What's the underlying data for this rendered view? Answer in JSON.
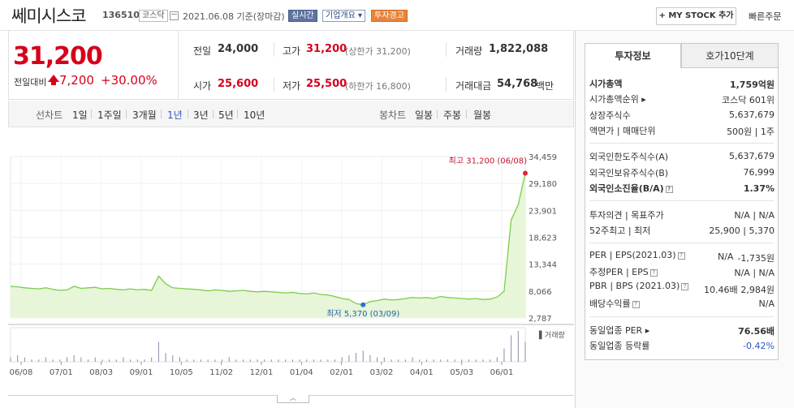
{
  "header": {
    "stock_name": "쎄미시스코",
    "stock_code": "136510",
    "market_badge": "코스닥",
    "date": "2021.06.08 기준(장마감)",
    "realtime_badge": "실시간",
    "company_badge": "기업개요 ▾",
    "warning_badge": "투자경고",
    "mystock_label": "+ MY STOCK 추가",
    "quick_order_label": "빠른주문"
  },
  "price": {
    "current": "31,200",
    "change_label": "전일대비",
    "change_amount": "7,200",
    "change_percent": "+30.00%"
  },
  "stats": {
    "prev_close_label": "전일",
    "prev_close": "24,000",
    "high_label": "고가",
    "high": "31,200",
    "upper_limit": "(상한가 31,200)",
    "volume_label": "거래량",
    "volume": "1,822,088",
    "open_label": "시가",
    "open": "25,600",
    "low_label": "저가",
    "low": "25,500",
    "lower_limit": "(하한가 16,800)",
    "amount_label": "거래대금",
    "amount": "54,768",
    "amount_unit": "백만"
  },
  "period_bar": {
    "line_chart_label": "선차트",
    "periods": [
      "1일",
      "1주일",
      "3개월",
      "1년",
      "3년",
      "5년",
      "10년"
    ],
    "selected_period": "1년",
    "candle_label": "봉차트",
    "candles": [
      "일봉",
      "주봉",
      "월봉"
    ]
  },
  "chart_data": {
    "type": "line",
    "y_ticks": [
      "34,459",
      "29,180",
      "23,901",
      "18,623",
      "13,344",
      "8,066",
      "2,787"
    ],
    "ylim": [
      2787,
      34459
    ],
    "x_ticks": [
      "06/08",
      "07/01",
      "08/03",
      "09/01",
      "10/05",
      "11/02",
      "12/01",
      "01/04",
      "02/01",
      "03/02",
      "04/01",
      "05/03",
      "06/01"
    ],
    "max_annotation": "최고 31,200 (06/08)",
    "min_annotation": "최저 5,370 (03/09)",
    "max_value": 31200,
    "min_value": 5370,
    "volume_label": "거래량",
    "series": [
      {
        "values": [
          9000,
          8900,
          8700,
          8600,
          8500,
          8700,
          8400,
          8200,
          8300,
          9000,
          8600,
          8700,
          8800,
          8500,
          8600,
          8400,
          8300,
          8500,
          8300,
          8400,
          8200,
          11000,
          9500,
          8700,
          8600,
          8500,
          8400,
          8300,
          8100,
          8300,
          8200,
          8000,
          8100,
          8200,
          8000,
          7900,
          8000,
          7900,
          7800,
          7700,
          7800,
          7600,
          7500,
          7700,
          7400,
          7300,
          7000,
          6600,
          6400,
          5600,
          5370,
          6000,
          6200,
          6500,
          6300,
          6400,
          6600,
          6800,
          6700,
          6800,
          6600,
          7000,
          6800,
          6700,
          6600,
          6500,
          6600,
          6400,
          6500,
          6900,
          8000,
          22000,
          25000,
          31200
        ]
      }
    ],
    "volume_values": [
      2,
      3,
      2,
      1,
      1,
      2,
      1,
      1,
      2,
      3,
      2,
      1,
      2,
      1,
      1,
      1,
      2,
      1,
      1,
      1,
      2,
      9,
      4,
      3,
      2,
      1,
      1,
      1,
      1,
      1,
      1,
      2,
      1,
      1,
      1,
      1,
      1,
      1,
      1,
      1,
      1,
      1,
      1,
      1,
      1,
      1,
      1,
      2,
      3,
      4,
      5,
      3,
      2,
      2,
      1,
      1,
      1,
      2,
      1,
      1,
      1,
      1,
      1,
      1,
      1,
      1,
      1,
      1,
      1,
      2,
      6,
      12,
      14,
      9
    ]
  },
  "right_panel": {
    "tab_invest": "투자정보",
    "tab_hoga": "호가10단계",
    "rows1": [
      {
        "label": "시가총액",
        "value": "1,759억원",
        "bold": true
      },
      {
        "label": "시가총액순위 ▸",
        "value": "코스닥 601위",
        "bold": false
      },
      {
        "label": "상장주식수",
        "value": "5,637,679",
        "bold": false
      },
      {
        "label": "액면가 | 매매단위",
        "value": "500원 | 1주",
        "bold": false
      }
    ],
    "rows2": [
      {
        "label": "외국인한도주식수(A)",
        "value": "5,637,679",
        "bold": false
      },
      {
        "label": "외국인보유주식수(B)",
        "value": "76,999",
        "bold": false
      },
      {
        "label": "외국인소진율(B/A)",
        "value": "1.37%",
        "bold": true
      }
    ],
    "invest_opinion_label": "투자의견 | 목표주가",
    "invest_opinion_value": "N/A | N/A",
    "week52_label": "52주최고 | 최저",
    "week52_value": "25,900 | 5,370",
    "per_label": "PER | EPS(2021.03)",
    "per_value1": "N/A",
    "per_value2": "-1,735원",
    "est_per_label": "추정PER | EPS",
    "est_per_value": "N/A | N/A",
    "pbr_label": "PBR | BPS (2021.03)",
    "pbr_value1": "10.46배",
    "pbr_value2": "2,984원",
    "dividend_label": "배당수익률",
    "dividend_value": "N/A",
    "industry_per_label": "동일업종 PER ▸",
    "industry_per_value": "76.56배",
    "industry_rate_label": "동일업종 등락률",
    "industry_rate_value": "-0.42%"
  }
}
